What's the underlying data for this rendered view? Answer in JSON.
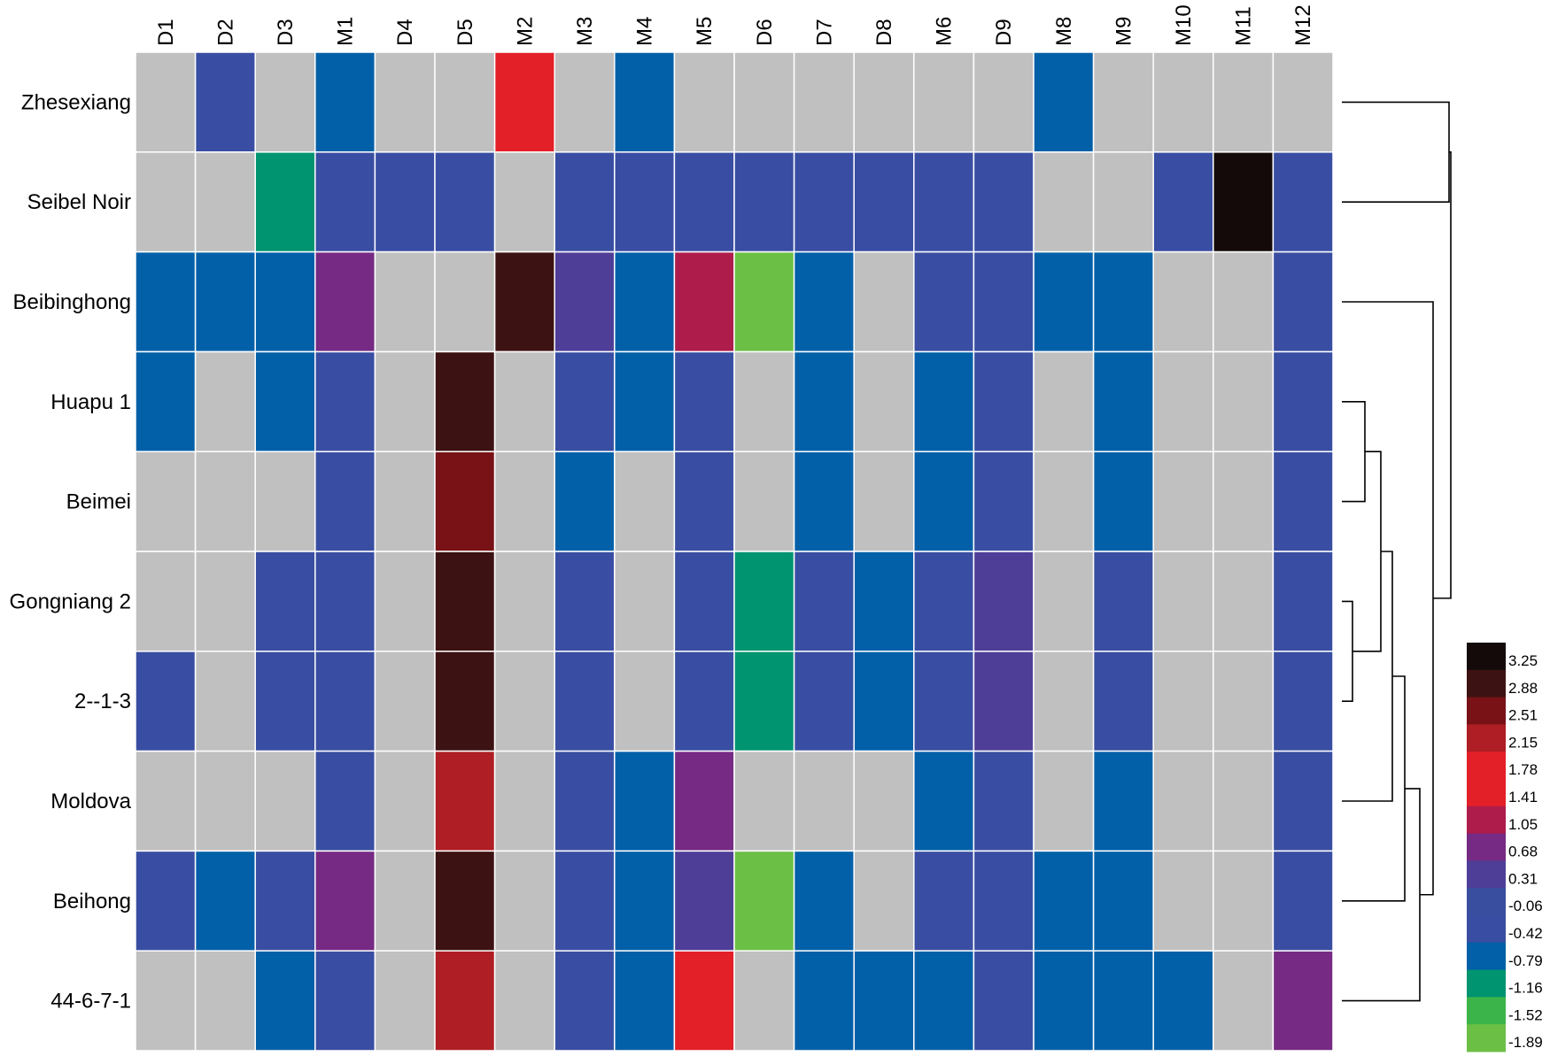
{
  "chart_data": {
    "type": "heatmap",
    "title": "",
    "xlabel": "",
    "ylabel": "",
    "columns": [
      "D1",
      "D2",
      "D3",
      "M1",
      "D4",
      "D5",
      "M2",
      "M3",
      "M4",
      "M5",
      "D6",
      "D7",
      "D8",
      "M6",
      "D9",
      "M8",
      "M9",
      "M10",
      "M11",
      "M12"
    ],
    "rows": [
      "Zhesexiang",
      "Seibel Noir",
      "Beibinghong",
      "Huapu 1",
      "Beimei",
      "Gongniang 2",
      "2--1-3",
      "Moldova",
      "Beihong",
      "44-6-7-1"
    ],
    "missing_color": "#c0c0c0",
    "values": [
      [
        null,
        -0.42,
        null,
        -0.79,
        null,
        null,
        1.78,
        null,
        -0.79,
        null,
        null,
        null,
        null,
        null,
        null,
        -0.79,
        null,
        null,
        null,
        null
      ],
      [
        null,
        null,
        -1.16,
        -0.42,
        -0.42,
        -0.42,
        null,
        -0.42,
        -0.42,
        -0.42,
        -0.42,
        -0.42,
        -0.42,
        -0.42,
        -0.42,
        null,
        null,
        -0.42,
        3.25,
        -0.42
      ],
      [
        -0.79,
        -0.79,
        -0.79,
        0.68,
        null,
        null,
        2.88,
        0.31,
        -0.79,
        1.05,
        -1.89,
        -0.79,
        null,
        -0.42,
        -0.42,
        -0.79,
        -0.79,
        null,
        null,
        -0.42
      ],
      [
        -0.79,
        null,
        -0.79,
        -0.42,
        null,
        2.88,
        null,
        -0.42,
        -0.79,
        -0.42,
        null,
        -0.79,
        null,
        -0.79,
        -0.42,
        null,
        -0.79,
        null,
        null,
        -0.42
      ],
      [
        null,
        null,
        null,
        -0.42,
        null,
        2.51,
        null,
        -0.79,
        null,
        -0.42,
        null,
        -0.79,
        null,
        -0.79,
        -0.42,
        null,
        -0.79,
        null,
        null,
        -0.42
      ],
      [
        null,
        null,
        -0.42,
        -0.42,
        null,
        2.88,
        null,
        -0.42,
        null,
        -0.42,
        -1.16,
        -0.42,
        -0.79,
        -0.42,
        0.31,
        null,
        -0.42,
        null,
        null,
        -0.42
      ],
      [
        -0.42,
        null,
        -0.42,
        -0.42,
        null,
        2.88,
        null,
        -0.42,
        null,
        -0.42,
        -1.16,
        -0.42,
        -0.79,
        -0.42,
        0.31,
        null,
        -0.42,
        null,
        null,
        -0.42
      ],
      [
        null,
        null,
        null,
        -0.42,
        null,
        2.15,
        null,
        -0.42,
        -0.79,
        0.68,
        null,
        null,
        null,
        -0.79,
        -0.42,
        null,
        -0.79,
        null,
        null,
        -0.42
      ],
      [
        -0.42,
        -0.79,
        -0.42,
        0.68,
        null,
        2.88,
        null,
        -0.42,
        -0.79,
        0.31,
        -1.89,
        -0.79,
        null,
        -0.42,
        -0.42,
        -0.79,
        -0.79,
        null,
        null,
        -0.42
      ],
      [
        null,
        null,
        -0.79,
        -0.42,
        null,
        2.15,
        null,
        -0.42,
        -0.79,
        1.78,
        null,
        -0.79,
        -0.79,
        -0.79,
        -0.42,
        -0.79,
        -0.79,
        -0.79,
        null,
        0.68
      ]
    ],
    "color_scale": {
      "labels": [
        "3.25",
        "2.88",
        "2.51",
        "2.15",
        "1.78",
        "1.41",
        "1.05",
        "0.68",
        "0.31",
        "-0.06",
        "-0.42",
        "-0.79",
        "-1.16",
        "-1.52",
        "-1.89"
      ],
      "colors": [
        "#140a0a",
        "#3d1212",
        "#781216",
        "#ae1e24",
        "#e31f27",
        "#e31f27",
        "#ae1c4c",
        "#762a84",
        "#4f3e98",
        "#3a4ea0",
        "#394ea2",
        "#0160a8",
        "#009470",
        "#3bb54a",
        "#6bbf45"
      ]
    },
    "dendrogram": {
      "leaf_order": [
        "Zhesexiang",
        "Seibel Noir",
        "Beibinghong",
        "Huapu 1",
        "Beimei",
        "Gongniang 2",
        "2--1-3",
        "Moldova",
        "Beihong",
        "44-6-7-1"
      ],
      "merges": [
        [
          "Zhesexiang",
          "Seibel Noir"
        ],
        [
          "Huapu 1",
          "Beimei"
        ],
        [
          "Gongniang 2",
          "2--1-3"
        ],
        [
          "Huapu 1|Beimei",
          "Gongniang 2|2--1-3"
        ],
        [
          "Huapu 1|Beimei|Gongniang 2|2--1-3",
          "Moldova"
        ],
        [
          "Huapu 1|Beimei|Gongniang 2|2--1-3|Moldova",
          "Beihong"
        ],
        [
          "Huapu 1|Beimei|Gongniang 2|2--1-3|Moldova|Beihong",
          "44-6-7-1"
        ],
        [
          "Beibinghong",
          "Huapu 1|Beimei|Gongniang 2|2--1-3|Moldova|Beihong|44-6-7-1"
        ],
        [
          "Zhesexiang|Seibel Noir",
          "Beibinghong|Huapu 1|Beimei|Gongniang 2|2--1-3|Moldova|Beihong|44-6-7-1"
        ]
      ]
    }
  }
}
